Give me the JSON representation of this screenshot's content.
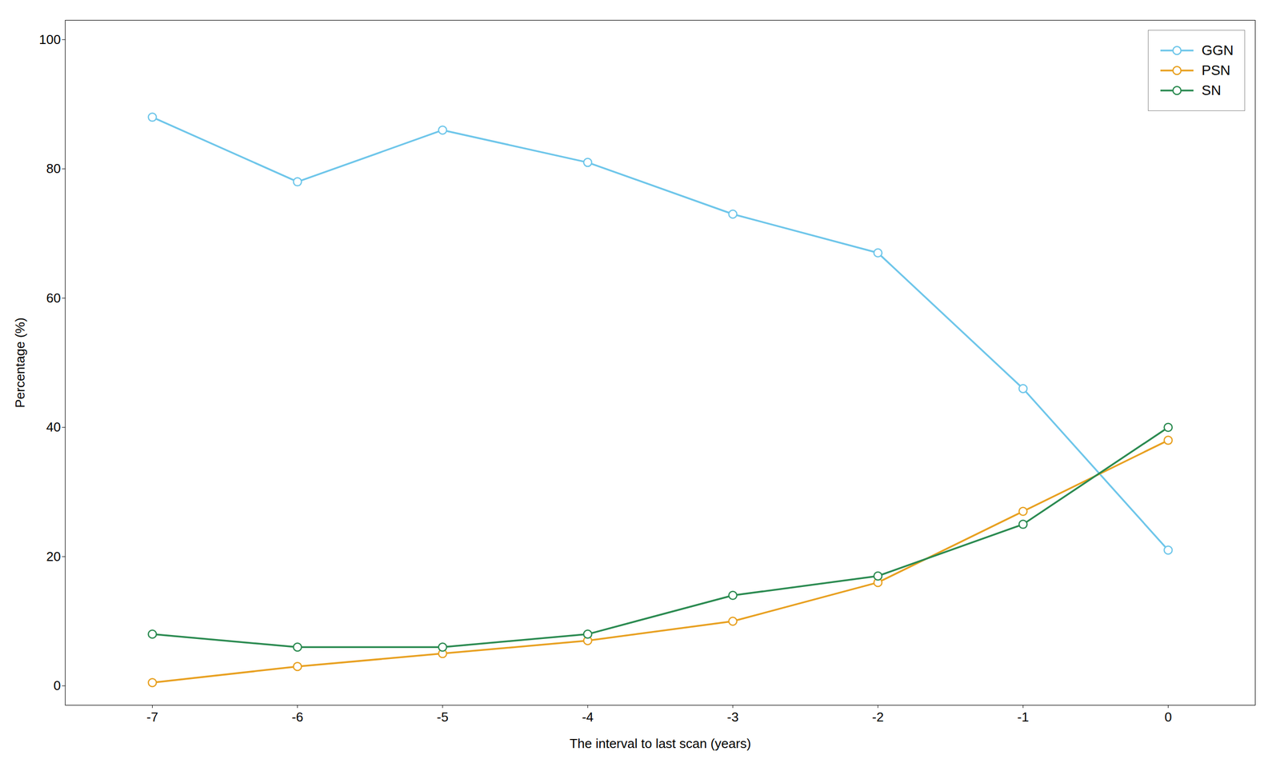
{
  "chart_data": {
    "type": "line",
    "x": [
      -7,
      -6,
      -5,
      -4,
      -3,
      -2,
      -1,
      0
    ],
    "series": [
      {
        "name": "GGN",
        "color": "#6ec6ea",
        "values": [
          88,
          78,
          86,
          81,
          73,
          67,
          46,
          21
        ]
      },
      {
        "name": "PSN",
        "color": "#e8a020",
        "values": [
          0.5,
          3,
          5,
          7,
          10,
          16,
          27,
          38
        ]
      },
      {
        "name": "SN",
        "color": "#2a8a50",
        "values": [
          8,
          6,
          6,
          8,
          14,
          17,
          25,
          40
        ]
      }
    ],
    "xlabel": "The interval to last scan (years)",
    "ylabel": "Percentage (%)",
    "xlim": [
      -7.6,
      0.6
    ],
    "ylim": [
      -3,
      103
    ],
    "xticks": [
      -7,
      -6,
      -5,
      -4,
      -3,
      -2,
      -1,
      0
    ],
    "yticks": [
      0,
      20,
      40,
      60,
      80,
      100
    ],
    "grid": false,
    "legend": "upper right",
    "marker": "o"
  }
}
